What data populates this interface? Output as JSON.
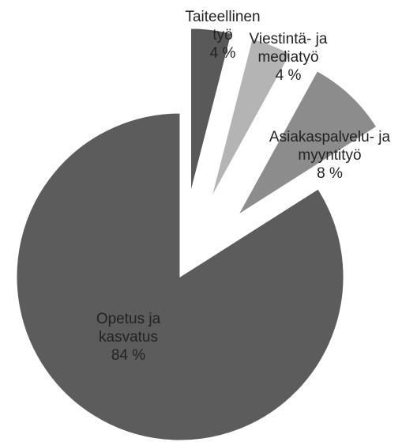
{
  "chart_data": {
    "type": "pie",
    "categories": [
      "Taiteellinen työ",
      "Viestintä- ja mediatyö",
      "Asiakaspalvelu- ja myyntityö",
      "Opetus ja kasvatus"
    ],
    "values": [
      4,
      4,
      8,
      84
    ],
    "value_labels": [
      "4 %",
      "4 %",
      "8 %",
      "84 %"
    ],
    "colors": [
      "#595959",
      "#b4b4b4",
      "#8c8c8c",
      "#5c5c5c"
    ],
    "exploded": [
      true,
      true,
      true,
      false
    ]
  }
}
